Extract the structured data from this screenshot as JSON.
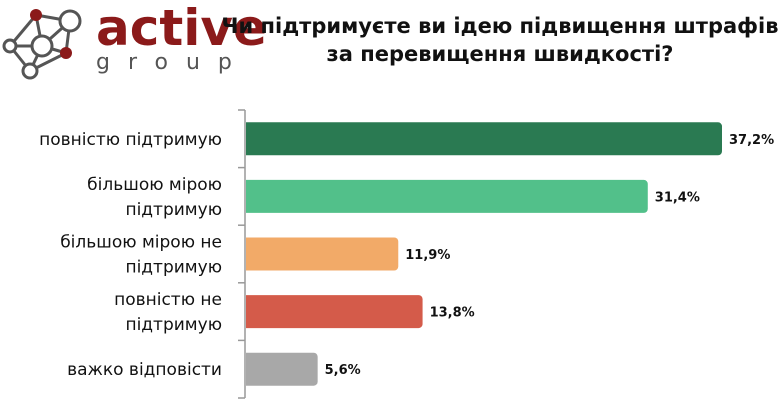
{
  "logo": {
    "text_main": "active",
    "text_sub": "group"
  },
  "chart_data": {
    "type": "bar",
    "orientation": "horizontal",
    "title": "Чи підтримуєте ви ідею підвищення штрафів за перевищення швидкості?",
    "categories": [
      [
        "повністю підтримую"
      ],
      [
        "більшою мірою",
        "підтримую"
      ],
      [
        "більшою мірою не",
        "підтримую"
      ],
      [
        "повністю не",
        "підтримую"
      ],
      [
        "важко відповісти"
      ]
    ],
    "values": [
      37.2,
      31.4,
      11.9,
      13.8,
      5.6
    ],
    "labels": [
      "37,2%",
      "31,4%",
      "11,9%",
      "13,8%",
      "5,6%"
    ],
    "colors": [
      "#2a7a52",
      "#52c08a",
      "#f2aa68",
      "#d45b4a",
      "#a8a8a8"
    ],
    "xlim": [
      0,
      37.2
    ],
    "grid": false,
    "legend": "none"
  }
}
